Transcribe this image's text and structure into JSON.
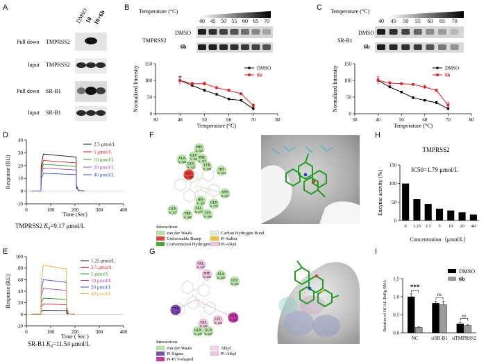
{
  "panel_letters": [
    "A",
    "B",
    "C",
    "D",
    "E",
    "F",
    "G",
    "H",
    "I"
  ],
  "panelA": {
    "lane_labels": [
      "DMSO",
      "10",
      "10+6b"
    ],
    "rows": [
      {
        "prefix": "Pull down",
        "target": "TMPRSS2"
      },
      {
        "prefix": "Input",
        "target": "TMPRSS2"
      },
      {
        "prefix": "Pull down",
        "target": "SR-B1"
      },
      {
        "prefix": "Input",
        "target": "SR-B1"
      }
    ]
  },
  "panelB": {
    "temp_header": "Temperature (°C)",
    "temps": [
      "40",
      "45",
      "50",
      "55",
      "60",
      "65",
      "70"
    ],
    "protein": "TMPRSS2",
    "blot_rows": [
      "DMSO",
      "6b"
    ]
  },
  "panelC": {
    "temp_header": "Temperature (°C)",
    "temps": [
      "40",
      "45",
      "50",
      "55",
      "60",
      "65",
      "70"
    ],
    "protein": "SR-B1",
    "blot_rows": [
      "DMSO",
      "6b"
    ]
  },
  "panelD": {
    "caption_prefix": "TMPRSS2 ",
    "kd_symbol": "K",
    "kd_sub": "d",
    "kd_value": "=9.17 μmol/L"
  },
  "panelE": {
    "caption_prefix": "SR-B1 ",
    "kd_symbol": "K",
    "kd_sub": "d",
    "kd_value": "=11.54 μmol/L"
  },
  "panelF": {
    "residues": [
      {
        "name": "PHE",
        "num": "A: 321"
      },
      {
        "name": "GLY",
        "num": "A: 320"
      },
      {
        "name": "ALA",
        "num": "A: 326"
      },
      {
        "name": "PHE",
        "num": "A: 319"
      },
      {
        "name": "GLY",
        "num": "A: 325"
      },
      {
        "name": "TYR",
        "num": "A: 330"
      },
      {
        "name": "HIS",
        "num": "A: 234"
      },
      {
        "name": "ILE",
        "num": "A: 309"
      },
      {
        "name": "ASN",
        "num": "A: 237"
      },
      {
        "name": "GLN",
        "num": "A: 327"
      },
      {
        "name": "HIS",
        "num": "A: 307"
      },
      {
        "name": "VAL",
        "num": "A: 275"
      },
      {
        "name": "GLN",
        "num": "A: 276"
      },
      {
        "name": "LYS",
        "num": "A: 306"
      },
      {
        "name": "TRP",
        "num": "A: 308"
      }
    ],
    "legend_title": "Interactions",
    "legend": [
      {
        "label": "van der Waals",
        "color": "#b9e3a8"
      },
      {
        "label": "Unfavorable Bump",
        "color": "#e8413b"
      },
      {
        "label": "Conventional Hydrogen bond",
        "color": "#47a93a"
      },
      {
        "label": "Carbon Hydrogen Bond",
        "color": "#dff0d4"
      },
      {
        "label": "Pi-Sulfur",
        "color": "#f0c235"
      },
      {
        "label": "Pi-Alkyl",
        "color": "#eec4de"
      }
    ]
  },
  "panelG": {
    "residues": [
      {
        "name": "VAL",
        "num": "A: 447"
      },
      {
        "name": "ALA",
        "num": "A: 444"
      },
      {
        "name": "PHE",
        "num": "A: 450"
      },
      {
        "name": "LEU",
        "num": "A: 451"
      },
      {
        "name": "TYR",
        "num": "A: 443"
      },
      {
        "name": "VAL",
        "num": "A: 440"
      },
      {
        "name": "LEU",
        "num": "A: 434"
      },
      {
        "name": "TYR",
        "num": "A: 455"
      },
      {
        "name": "GLN",
        "num": "A: 437"
      },
      {
        "name": "GLN",
        "num": "A: 439"
      }
    ],
    "legend_title": "Interactions",
    "legend": [
      {
        "label": "van der Waals",
        "color": "#b9e3a8"
      },
      {
        "label": "Alkyl",
        "color": "#f3d6ea"
      },
      {
        "label": "Pi-Sigma",
        "color": "#7e4bb0"
      },
      {
        "label": "Pi-Alkyl",
        "color": "#eec4de"
      },
      {
        "label": "Pi-Pi T-shaped",
        "color": "#c2389f"
      }
    ]
  },
  "chart_data": [
    {
      "id": "B-curve",
      "type": "line",
      "xlabel": "Temperature (°C)",
      "ylabel": "Normalized Intensity",
      "xlim": [
        30,
        80
      ],
      "ylim": [
        0,
        150
      ],
      "xticks": [
        "30",
        "40",
        "50",
        "60",
        "70",
        "80"
      ],
      "yticks": [
        "0",
        "50",
        "100",
        "150"
      ],
      "x": [
        40,
        45,
        50,
        55,
        60,
        65,
        70
      ],
      "series": [
        {
          "name": "DMSO",
          "color": "#000000",
          "values": [
            100,
            85,
            70,
            58,
            44,
            40,
            15
          ],
          "errors": [
            12,
            5,
            4,
            3,
            3,
            3,
            5
          ]
        },
        {
          "name": "6b",
          "color": "#e3191c",
          "values": [
            100,
            90,
            90,
            78,
            70,
            60,
            25
          ],
          "errors": [
            10,
            4,
            5,
            3,
            4,
            3,
            4
          ]
        }
      ],
      "legend": "top-right"
    },
    {
      "id": "C-curve",
      "type": "line",
      "xlabel": "Temperature (°C)",
      "ylabel": "Normalized Intensity",
      "xlim": [
        30,
        80
      ],
      "ylim": [
        0,
        150
      ],
      "xticks": [
        "30",
        "40",
        "50",
        "60",
        "70",
        "80"
      ],
      "yticks": [
        "0",
        "50",
        "100",
        "150"
      ],
      "x": [
        40,
        45,
        50,
        55,
        60,
        65,
        70
      ],
      "series": [
        {
          "name": "DMSO",
          "color": "#000000",
          "values": [
            100,
            80,
            65,
            48,
            40,
            33,
            15
          ],
          "errors": [
            6,
            4,
            3,
            3,
            3,
            4,
            4
          ]
        },
        {
          "name": "6b",
          "color": "#e3191c",
          "values": [
            100,
            92,
            90,
            88,
            80,
            70,
            26
          ],
          "errors": [
            12,
            4,
            3,
            3,
            5,
            4,
            8
          ]
        }
      ],
      "legend": "top-right"
    },
    {
      "id": "D-sensorgram",
      "type": "line",
      "xlabel": "Time (Sec)",
      "ylabel": "Response (RU)",
      "xlim": [
        0,
        400
      ],
      "ylim": [
        -10,
        40
      ],
      "xticks": [
        "0",
        "100",
        "200",
        "300",
        "400"
      ],
      "yticks": [
        "-10",
        "0",
        "10",
        "20",
        "30",
        "40"
      ],
      "injection_start": 60,
      "injection_end": 205,
      "series": [
        {
          "name": "2.5 μmol/L",
          "color": "#1a1a1a",
          "plateau": 29
        },
        {
          "name": "5 μmol/L",
          "color": "#e3191c",
          "plateau": 24
        },
        {
          "name": "10 μmol/L",
          "color": "#21a121",
          "plateau": 21
        },
        {
          "name": "20 μmol/L",
          "color": "#b03fb0",
          "plateau": 18
        },
        {
          "name": "40 μmol/L",
          "color": "#2b4fd4",
          "plateau": 14
        }
      ],
      "legend": "top-right"
    },
    {
      "id": "E-sensorgram",
      "type": "line",
      "xlabel": "Time ( Sec )",
      "ylabel": "Response (RU)",
      "xlim": [
        0,
        400
      ],
      "ylim": [
        -20,
        100
      ],
      "xticks": [
        "0",
        "100",
        "200",
        "300",
        "400"
      ],
      "yticks": [
        "-20",
        "0",
        "20",
        "40",
        "60",
        "80",
        "100"
      ],
      "injection_start": 60,
      "injection_end": 165,
      "series": [
        {
          "name": "1.25 μmol/L",
          "color": "#1a1a1a",
          "plateau": 7
        },
        {
          "name": "2.5 μmol/L",
          "color": "#e3191c",
          "plateau": 18
        },
        {
          "name": "5 μmol/L",
          "color": "#21a121",
          "plateau": 28
        },
        {
          "name": "10 μmol/L",
          "color": "#b03fb0",
          "plateau": 45
        },
        {
          "name": "20 μmol/L",
          "color": "#2b4fd4",
          "plateau": 60
        },
        {
          "name": "40 μmol/L",
          "color": "#f2a531",
          "plateau": 85
        }
      ],
      "legend": "top-right"
    },
    {
      "id": "H-bar",
      "type": "bar",
      "title": "TMPRSS2",
      "annotation": "IC50=1.79 μmol/L",
      "xlabel": "Concentration（μmol/L）",
      "ylabel": "Enzyme activity (%)",
      "ylim": [
        0,
        150
      ],
      "yticks": [
        "0",
        "50",
        "100",
        "150"
      ],
      "categories": [
        "0",
        "1.25",
        "2.5",
        "5",
        "10",
        "20",
        "40"
      ],
      "values": [
        100,
        58,
        45,
        32,
        27,
        22,
        16
      ],
      "color": "#000000"
    },
    {
      "id": "I-bar",
      "type": "bar",
      "ylabel": "Relative of OCAL-ReRg RNA",
      "ylim": [
        0,
        1.5
      ],
      "yticks": [
        "0.0",
        "0.5",
        "1.0",
        "1.5"
      ],
      "categories": [
        "NC",
        "siSR-B1",
        "siTMPRSS2"
      ],
      "series": [
        {
          "name": "DMSO",
          "color": "#000000",
          "values": [
            1.0,
            0.82,
            0.25
          ],
          "errors": [
            0.08,
            0.05,
            0.05
          ]
        },
        {
          "name": "6b",
          "color": "#9a9a9a",
          "values": [
            0.15,
            0.78,
            0.2
          ],
          "errors": [
            0.02,
            0.1,
            0.03
          ]
        }
      ],
      "significance": [
        "***",
        "ns",
        "ns"
      ],
      "legend": "top-right"
    }
  ]
}
